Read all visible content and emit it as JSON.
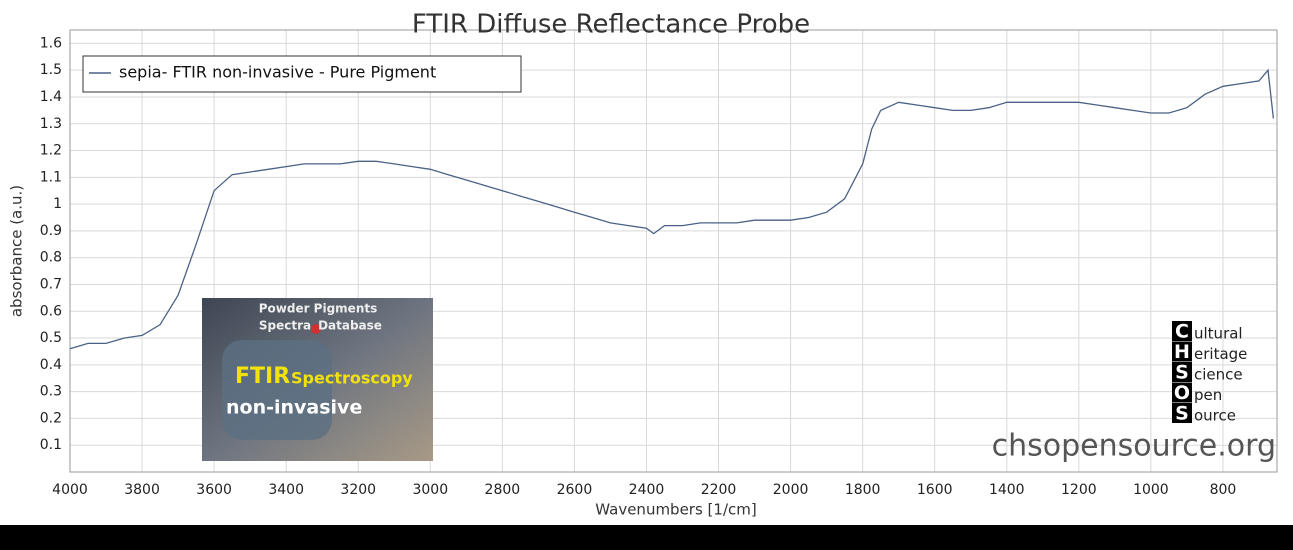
{
  "chart_data": {
    "type": "line",
    "title": "FTIR Diffuse Reflectance Probe",
    "xlabel": "Wavenumbers [1/cm]",
    "ylabel": "absorbance (a.u.)",
    "xlim": [
      4000,
      650
    ],
    "ylim": [
      0,
      1.65
    ],
    "xticks": [
      4000,
      3800,
      3600,
      3400,
      3200,
      3000,
      2800,
      2600,
      2400,
      2200,
      2000,
      1800,
      1600,
      1400,
      1200,
      1000,
      800
    ],
    "yticks": [
      0.1,
      0.2,
      0.3,
      0.4,
      0.5,
      0.6,
      0.7,
      0.8,
      0.9,
      1,
      1.1,
      1.2,
      1.3,
      1.4,
      1.5,
      1.6
    ],
    "grid": true,
    "legend": "top-left",
    "x": [
      4000,
      3950,
      3900,
      3850,
      3800,
      3750,
      3700,
      3650,
      3600,
      3550,
      3500,
      3450,
      3400,
      3350,
      3300,
      3250,
      3200,
      3150,
      3100,
      3050,
      3000,
      2950,
      2900,
      2850,
      2800,
      2750,
      2700,
      2650,
      2600,
      2550,
      2500,
      2450,
      2400,
      2380,
      2350,
      2300,
      2250,
      2200,
      2150,
      2100,
      2050,
      2000,
      1950,
      1900,
      1850,
      1800,
      1775,
      1750,
      1700,
      1650,
      1600,
      1550,
      1500,
      1450,
      1400,
      1350,
      1300,
      1250,
      1200,
      1150,
      1100,
      1050,
      1000,
      950,
      900,
      850,
      800,
      750,
      700,
      675,
      660
    ],
    "series": [
      {
        "name": "sepia- FTIR non-invasive - Pure Pigment",
        "color": "#4a6285",
        "values": [
          0.46,
          0.48,
          0.48,
          0.5,
          0.51,
          0.55,
          0.66,
          0.85,
          1.05,
          1.11,
          1.12,
          1.13,
          1.14,
          1.15,
          1.15,
          1.15,
          1.16,
          1.16,
          1.15,
          1.14,
          1.13,
          1.11,
          1.09,
          1.07,
          1.05,
          1.03,
          1.01,
          0.99,
          0.97,
          0.95,
          0.93,
          0.92,
          0.91,
          0.89,
          0.92,
          0.92,
          0.93,
          0.93,
          0.93,
          0.94,
          0.94,
          0.94,
          0.95,
          0.97,
          1.02,
          1.15,
          1.28,
          1.35,
          1.38,
          1.37,
          1.36,
          1.35,
          1.35,
          1.36,
          1.38,
          1.38,
          1.38,
          1.38,
          1.38,
          1.37,
          1.36,
          1.35,
          1.34,
          1.34,
          1.36,
          1.41,
          1.44,
          1.45,
          1.46,
          1.5,
          1.32
        ]
      }
    ]
  },
  "inset": {
    "line1": "Powder Pigments",
    "line2a": "Spectra",
    "line2b": "Database",
    "headline_a": "FTIR",
    "headline_b": "Spectroscopy",
    "subline": "non-invasive"
  },
  "logo": {
    "rows": [
      {
        "letter": "C",
        "word": "ultural"
      },
      {
        "letter": "H",
        "word": "eritage"
      },
      {
        "letter": "S",
        "word": "cience"
      },
      {
        "letter": "O",
        "word": "pen"
      },
      {
        "letter": "S",
        "word": "ource"
      }
    ]
  },
  "website": "chsopensource.org"
}
